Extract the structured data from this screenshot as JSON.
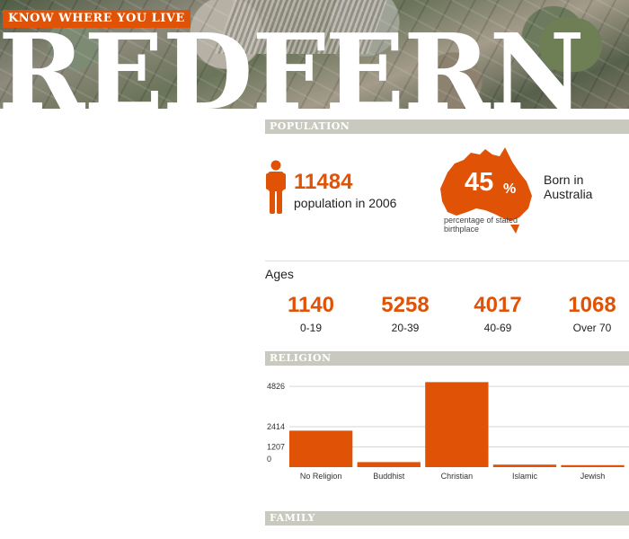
{
  "header": {
    "tagline": "KNOW WHERE YOU LIVE",
    "suburb": "REDFERN"
  },
  "population": {
    "section_title": "POPULATION",
    "count": "11484",
    "count_label": "population in 2006",
    "born_percent": "45",
    "percent_symbol": "%",
    "born_sub_label": "percentage of stated birthplace",
    "born_label": "Born in Australia"
  },
  "ages": {
    "title": "Ages",
    "groups": [
      {
        "value": "1140",
        "label": "0-19"
      },
      {
        "value": "5258",
        "label": "20-39"
      },
      {
        "value": "4017",
        "label": "40-69"
      },
      {
        "value": "1068",
        "label": "Over 70"
      }
    ]
  },
  "religion": {
    "section_title": "RELIGION"
  },
  "family": {
    "section_title": "FAMILY"
  },
  "colors": {
    "accent": "#e05206",
    "section_bar": "#c9c9bf"
  },
  "chart_data": {
    "type": "bar",
    "categories": [
      "No Religion",
      "Buddhist",
      "Christian",
      "Islamic",
      "Jewish"
    ],
    "values": [
      2180,
      300,
      5080,
      150,
      120
    ],
    "yticks": [
      0,
      1207,
      2414,
      4826
    ],
    "ylim": [
      0,
      5100
    ],
    "grid": true,
    "color": "#e05206"
  }
}
